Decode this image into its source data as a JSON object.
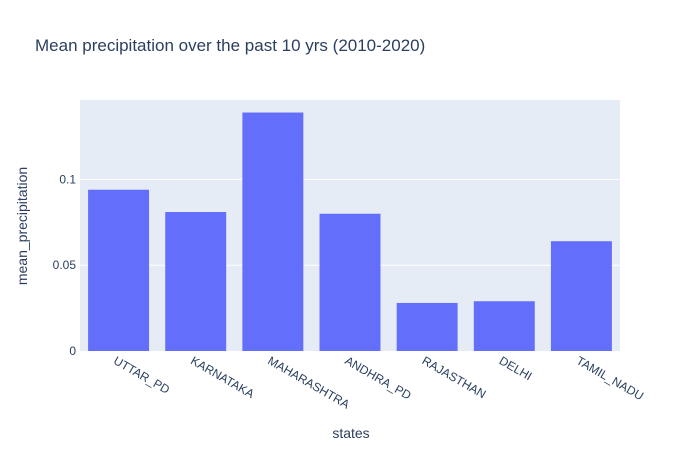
{
  "chart_data": {
    "type": "bar",
    "title": "Mean precipitation over the past 10 yrs (2010-2020)",
    "xlabel": "states",
    "ylabel": "mean_precipitation",
    "categories": [
      "UTTAR_PD",
      "KARNATAKA",
      "MAHARASHTRA",
      "ANDHRA_PD",
      "RAJASTHAN",
      "DELHI",
      "TAMIL_NADU"
    ],
    "values": [
      0.094,
      0.081,
      0.139,
      0.08,
      0.028,
      0.029,
      0.064
    ],
    "ylim": [
      0,
      0.1463
    ],
    "yticks": [
      0,
      0.05,
      0.1
    ],
    "ytick_labels": [
      "0",
      "0.05",
      "0.1"
    ],
    "grid": true,
    "colors": {
      "bar": "#636efa",
      "plot_bg": "#e5ecf6",
      "grid": "#ffffff",
      "text": "#2a3f5f"
    }
  }
}
